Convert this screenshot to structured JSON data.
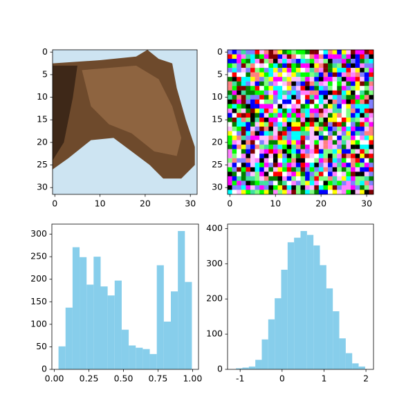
{
  "chart_data": [
    {
      "type": "image",
      "xlim": [
        -0.5,
        31.5
      ],
      "ylim": [
        31.5,
        -0.5
      ],
      "xticks": [
        0,
        10,
        20,
        30
      ],
      "yticks": [
        0,
        5,
        10,
        15,
        20,
        25,
        30
      ]
    },
    {
      "type": "image",
      "xlim": [
        -0.5,
        31.5
      ],
      "ylim": [
        31.5,
        -0.5
      ],
      "xticks": [
        0,
        10,
        20,
        30
      ],
      "yticks": [
        0,
        5,
        10,
        15,
        20,
        25,
        30
      ]
    },
    {
      "type": "histogram",
      "color": "#87ceeb",
      "bins": [
        0.03,
        0.0808,
        0.1316,
        0.1824,
        0.2332,
        0.284,
        0.3348,
        0.3856,
        0.4364,
        0.4872,
        0.538,
        0.5888,
        0.6396,
        0.6904,
        0.7412,
        0.792,
        0.8428,
        0.8936,
        0.9444,
        0.9952
      ],
      "values": [
        51,
        137,
        271,
        249,
        188,
        250,
        184,
        164,
        197,
        88,
        53,
        48,
        45,
        34,
        231,
        106,
        173,
        307,
        194
      ],
      "xlim": [
        -0.018,
        1.043
      ],
      "ylim": [
        0,
        322.35
      ],
      "xticks": [
        {
          "value": 0,
          "label": "0.00"
        },
        {
          "value": 0.25,
          "label": "0.25"
        },
        {
          "value": 0.5,
          "label": "0.50"
        },
        {
          "value": 0.75,
          "label": "0.75"
        },
        {
          "value": 1,
          "label": "1.00"
        }
      ],
      "yticks": [
        0,
        50,
        100,
        150,
        200,
        250,
        300
      ]
    },
    {
      "type": "histogram",
      "color": "#87ceeb",
      "bins": [
        -1.1,
        -0.946,
        -0.792,
        -0.638,
        -0.484,
        -0.33,
        -0.176,
        -0.022,
        0.132,
        0.286,
        0.44,
        0.594,
        0.748,
        0.902,
        1.056,
        1.21,
        1.364,
        1.518,
        1.672,
        1.826,
        1.98
      ],
      "values": [
        3,
        5,
        8,
        27,
        85,
        142,
        202,
        283,
        361,
        374,
        393,
        382,
        352,
        296,
        230,
        165,
        88,
        46,
        17,
        8
      ],
      "xlim": [
        -1.3,
        2.18
      ],
      "ylim": [
        0,
        412.65
      ],
      "xticks": [
        -1,
        0,
        1,
        2
      ],
      "yticks": [
        0,
        100,
        200,
        300,
        400
      ]
    }
  ]
}
